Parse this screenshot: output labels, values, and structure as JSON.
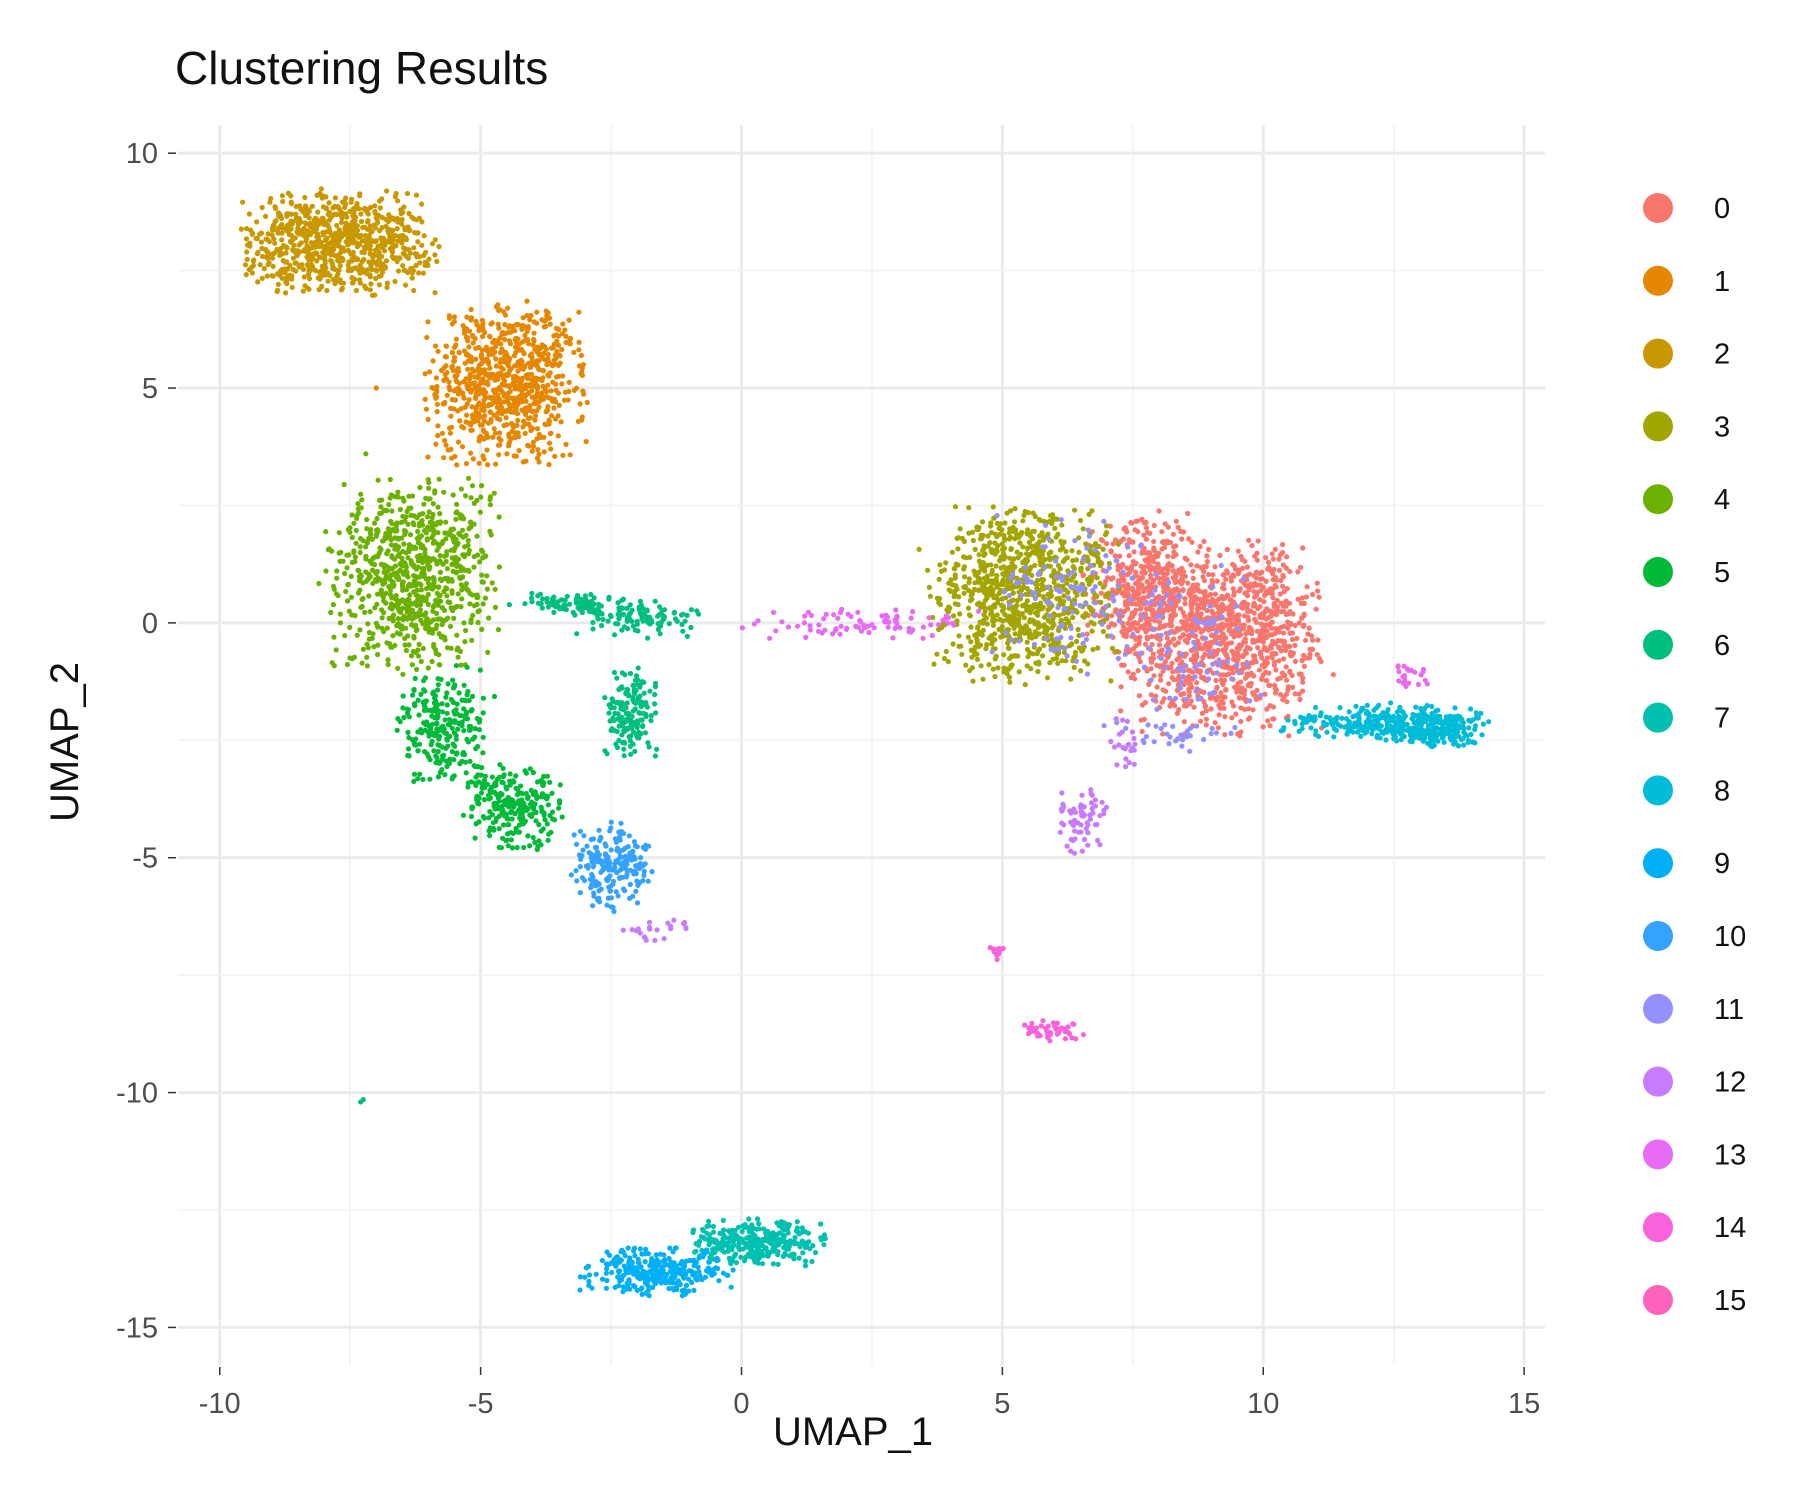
{
  "chart_data": {
    "type": "scatter",
    "title": "Clustering Results",
    "xlabel": "UMAP_1",
    "ylabel": "UMAP_2",
    "xlim": [
      -10.8,
      15.4
    ],
    "ylim": [
      -15.8,
      10.6
    ],
    "x_ticks": [
      -10,
      -5,
      0,
      5,
      10,
      15
    ],
    "y_ticks": [
      -15,
      -10,
      -5,
      0,
      5,
      10
    ],
    "x_tick_labels": [
      "-10",
      "-5",
      "0",
      "5",
      "10",
      "15"
    ],
    "y_tick_labels": [
      "-15",
      "-10",
      "-5",
      "0",
      "5",
      "10"
    ],
    "grid": true,
    "legend_position": "right",
    "series": [
      {
        "name": "0",
        "color": "#F8766D",
        "n": 1500,
        "blobs": [
          [
            9.2,
            -0.3,
            1.1,
            1.2,
            0.75
          ],
          [
            7.6,
            0.8,
            0.6,
            0.9,
            0.25
          ]
        ]
      },
      {
        "name": "1",
        "color": "#E58700",
        "n": 800,
        "blobs": [
          [
            -4.5,
            5.1,
            0.9,
            1.0,
            1.0
          ]
        ]
      },
      {
        "name": "2",
        "color": "#C99800",
        "n": 800,
        "blobs": [
          [
            -7.7,
            8.1,
            1.1,
            0.65,
            1.0
          ]
        ]
      },
      {
        "name": "3",
        "color": "#A3A500",
        "n": 900,
        "blobs": [
          [
            5.4,
            0.6,
            1.05,
            1.1,
            1.0
          ]
        ]
      },
      {
        "name": "4",
        "color": "#6BB100",
        "n": 800,
        "blobs": [
          [
            -6.3,
            1.0,
            0.95,
            1.2,
            1.0
          ]
        ]
      },
      {
        "name": "5",
        "color": "#00BA38",
        "n": 500,
        "blobs": [
          [
            -5.7,
            -2.2,
            0.55,
            0.75,
            0.5
          ],
          [
            -4.4,
            -3.9,
            0.55,
            0.55,
            0.5
          ]
        ]
      },
      {
        "name": "6",
        "color": "#00BF7D",
        "n": 350,
        "blobs": [
          [
            -2.1,
            -1.9,
            0.3,
            0.6,
            0.45
          ],
          [
            -2.0,
            0.1,
            0.7,
            0.25,
            0.3
          ],
          [
            -3.3,
            0.4,
            0.7,
            0.15,
            0.25
          ]
        ]
      },
      {
        "name": "7",
        "color": "#00C0AF",
        "n": 300,
        "blobs": [
          [
            0.3,
            -13.2,
            0.75,
            0.3,
            1.0
          ]
        ]
      },
      {
        "name": "8",
        "color": "#00BCD8",
        "n": 450,
        "blobs": [
          [
            12.3,
            -2.1,
            1.2,
            0.22,
            0.6
          ],
          [
            13.2,
            -2.3,
            0.6,
            0.2,
            0.4
          ]
        ]
      },
      {
        "name": "9",
        "color": "#00B0F6",
        "n": 300,
        "blobs": [
          [
            -1.6,
            -13.8,
            0.85,
            0.3,
            1.0
          ]
        ]
      },
      {
        "name": "10",
        "color": "#35A2FF",
        "n": 200,
        "blobs": [
          [
            -2.5,
            -5.2,
            0.45,
            0.55,
            1.0
          ]
        ]
      },
      {
        "name": "11",
        "color": "#9590FF",
        "n": 230,
        "blobs": [
          [
            6.3,
            0.6,
            0.9,
            1.0,
            0.5
          ],
          [
            8.6,
            -0.5,
            0.8,
            1.0,
            0.35
          ],
          [
            8.3,
            -2.4,
            0.8,
            0.2,
            0.15
          ]
        ]
      },
      {
        "name": "12",
        "color": "#C77CFF",
        "n": 110,
        "blobs": [
          [
            6.5,
            -4.2,
            0.3,
            0.5,
            0.6
          ],
          [
            7.3,
            -2.6,
            0.2,
            0.4,
            0.2
          ],
          [
            -1.6,
            -6.6,
            0.4,
            0.2,
            0.2
          ]
        ]
      },
      {
        "name": "13",
        "color": "#E76BF3",
        "n": 110,
        "blobs": [
          [
            2.3,
            0.0,
            1.3,
            0.2,
            0.8
          ],
          [
            12.8,
            -1.1,
            0.2,
            0.2,
            0.2
          ]
        ]
      },
      {
        "name": "14",
        "color": "#FA62DB",
        "n": 60,
        "blobs": [
          [
            6.0,
            -8.7,
            0.35,
            0.15,
            0.8
          ],
          [
            4.9,
            -7.0,
            0.1,
            0.1,
            0.2
          ]
        ]
      },
      {
        "name": "15",
        "color": "#FF62BC",
        "n": 0,
        "blobs": []
      }
    ],
    "stragglers": [
      {
        "series": "6",
        "x": -7.25,
        "y": -10.15
      },
      {
        "series": "6",
        "x": -7.3,
        "y": -10.2
      },
      {
        "series": "2",
        "x": -9.2,
        "y": 8.3
      },
      {
        "series": "1",
        "x": -7.0,
        "y": 5.0
      },
      {
        "series": "4",
        "x": -7.2,
        "y": 3.6
      }
    ]
  }
}
